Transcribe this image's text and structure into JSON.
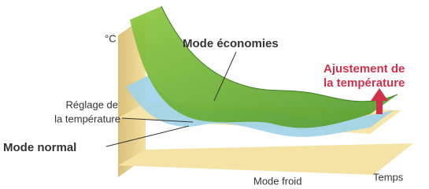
{
  "labels": {
    "unit": "°C",
    "eco_mode": "Mode économies",
    "adjustment": [
      "Ajustement de",
      "la température"
    ],
    "setting": [
      "Réglage de",
      "la température"
    ],
    "normal_mode": "Mode normal",
    "cold_mode": "Mode froid",
    "time": "Temps"
  }
}
